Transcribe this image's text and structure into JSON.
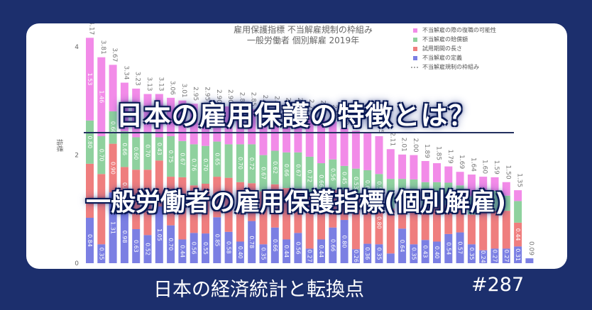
{
  "headline": "日本の雇用保護の特徴とは？",
  "subheadline": "一般労働者の雇用保護指標(個別解雇)",
  "footer": {
    "series_title": "日本の経済統計と転換点",
    "episode": "#287"
  },
  "colors": {
    "background": "#1c2f6d",
    "definition": "#7b7fe3",
    "probation": "#ef7e7e",
    "compensation": "#8fd19e",
    "reinstatement": "#f28be8",
    "framework": "#555555"
  },
  "chart_data": {
    "type": "bar",
    "stacked": true,
    "title": "雇用保護指標 不当解雇規制の枠組み",
    "subtitle": "一般労働者 個別解雇 2019年",
    "ylabel": "指標",
    "ylim": [
      0,
      4.2
    ],
    "yticks": [
      "4",
      "2",
      "0"
    ],
    "legend": [
      {
        "name": "不当解雇の際の復職の可能性",
        "color": "#f28be8"
      },
      {
        "name": "不当解雇の賠償額",
        "color": "#8fd19e"
      },
      {
        "name": "試用期間の長さ",
        "color": "#ef7e7e"
      },
      {
        "name": "不当解雇の定義",
        "color": "#7b7fe3"
      },
      {
        "name": "不当解雇規制の枠組み",
        "color": "#555555"
      }
    ],
    "totals": [
      "4.17",
      "3.81",
      "3.67",
      "3.34",
      "3.23",
      "3.13",
      "3.13",
      "3.06",
      "3.01",
      "2.95",
      "2.95",
      "2.90",
      "2.90",
      "2.85",
      "2.85",
      "2.80",
      "2.78",
      "2.75",
      "2.75",
      "2.72",
      "2.70",
      "2.62",
      "2.50",
      "2.45",
      "2.42",
      "2.35",
      "2.11",
      "2.01",
      "2.00",
      "1.89",
      "1.85",
      "1.79",
      "1.69",
      "1.64",
      "1.60",
      "1.59",
      "1.50",
      "1.35",
      "0.09"
    ],
    "series": [
      {
        "name": "不当解雇の定義",
        "values": [
          0.84,
          0.35,
          1.31,
          0.98,
          0.63,
          0.52,
          1.05,
          0.7,
          0.44,
          0.56,
          0.55,
          0.85,
          0.58,
          0.4,
          0.78,
          0.35,
          0.66,
          0.44,
          0.56,
          0.27,
          0.44,
          0.66,
          0.8,
          0.26,
          0.36,
          0.35,
          0.18,
          0.64,
          0.35,
          0.43,
          0.4,
          0.54,
          0.57,
          0.35,
          0.24,
          0.27,
          0.27,
          0.31,
          0.09
        ],
        "labels": [
          "0.84",
          "0.35",
          "1.31",
          "0.98",
          "0.63",
          "0.52",
          "1.05",
          "0.70",
          "0.44",
          "0.56",
          "0.55",
          "0.85",
          "0.58",
          "0.40",
          "0.78",
          "0.35",
          "0.66",
          "0.44",
          "0.56",
          "0.27",
          "0.44",
          "0.66",
          "0.80",
          "0.26",
          "0.36",
          "0.35",
          "0.18",
          "0.64",
          "0.35",
          "0.43",
          "0.40",
          "0.54",
          "0.57",
          "0.35",
          "0.24",
          "0.27",
          "0.27",
          "0.31",
          "0.09"
        ]
      },
      {
        "name": "試用期間の長さ",
        "values": [
          1.0,
          1.3,
          0.9,
          0.8,
          1.1,
          1.21,
          0.85,
          0.9,
          1.15,
          0.88,
          0.92,
          0.75,
          1.0,
          1.1,
          0.7,
          0.98,
          0.8,
          0.95,
          0.82,
          0.98,
          0.75,
          0.7,
          0.55,
          0.96,
          0.76,
          0.8,
          0.83,
          0.55,
          0.75,
          0.62,
          0.68,
          0.54,
          0.55,
          0.55,
          0.74,
          0.7,
          0.7,
          0.44,
          0.0
        ],
        "labels": [
          "",
          "",
          "0.90",
          "0.80",
          "",
          "",
          "",
          "",
          "",
          "",
          "",
          "",
          "",
          "",
          "0.70",
          "",
          "0.80",
          "",
          "",
          "",
          "",
          "",
          "",
          "",
          "",
          "0.80",
          "",
          "",
          "",
          "",
          "",
          "",
          "",
          "",
          "",
          "",
          "",
          "0.44",
          ""
        ]
      },
      {
        "name": "不当解雇の賠償額",
        "values": [
          0.8,
          0.7,
          0.6,
          0.66,
          0.6,
          0.7,
          0.43,
          0.75,
          0.67,
          0.76,
          0.7,
          0.65,
          0.62,
          0.7,
          0.72,
          0.67,
          0.62,
          0.66,
          0.67,
          0.72,
          0.66,
          0.56,
          0.45,
          0.53,
          0.6,
          0.5,
          0.55,
          0.37,
          0.45,
          0.45,
          0.42,
          0.41,
          0.32,
          0.34,
          0.37,
          0.37,
          0.28,
          0.4,
          0.0
        ],
        "labels": [
          "0.80",
          "0.70",
          "0.60",
          "0.66",
          "0.60",
          "0.70",
          "0.43",
          "0.75",
          "0.67",
          "0.76",
          "0.70",
          "0.65",
          "",
          "0.70",
          "0.72",
          "0.67",
          "0.62",
          "0.66",
          "0.67",
          "0.72",
          "0.66",
          "0.56",
          "0.45",
          "0.53",
          "0.60",
          "0.50",
          "",
          "",
          "",
          "",
          "",
          "",
          "",
          "",
          "",
          "",
          "",
          "",
          ""
        ]
      },
      {
        "name": "不当解雇の際の復職の可能性",
        "values": [
          1.53,
          1.46,
          0.86,
          0.9,
          0.9,
          0.7,
          0.8,
          0.71,
          0.75,
          0.75,
          0.78,
          0.65,
          0.7,
          0.65,
          0.65,
          0.8,
          0.7,
          0.7,
          0.7,
          0.75,
          0.85,
          0.7,
          0.7,
          0.7,
          0.7,
          0.7,
          0.55,
          0.45,
          0.45,
          0.39,
          0.35,
          0.3,
          0.25,
          0.4,
          0.25,
          0.25,
          0.25,
          0.2,
          0.0
        ],
        "labels": [
          "1.53",
          "1.46",
          "",
          "",
          "",
          "",
          "",
          "",
          "",
          "",
          "",
          "",
          "",
          "",
          "",
          "",
          "",
          "",
          "",
          "",
          "",
          "",
          "",
          "",
          "",
          "",
          "",
          "",
          "",
          "",
          "",
          "",
          "",
          "",
          "",
          "",
          "",
          "",
          ""
        ]
      }
    ]
  }
}
